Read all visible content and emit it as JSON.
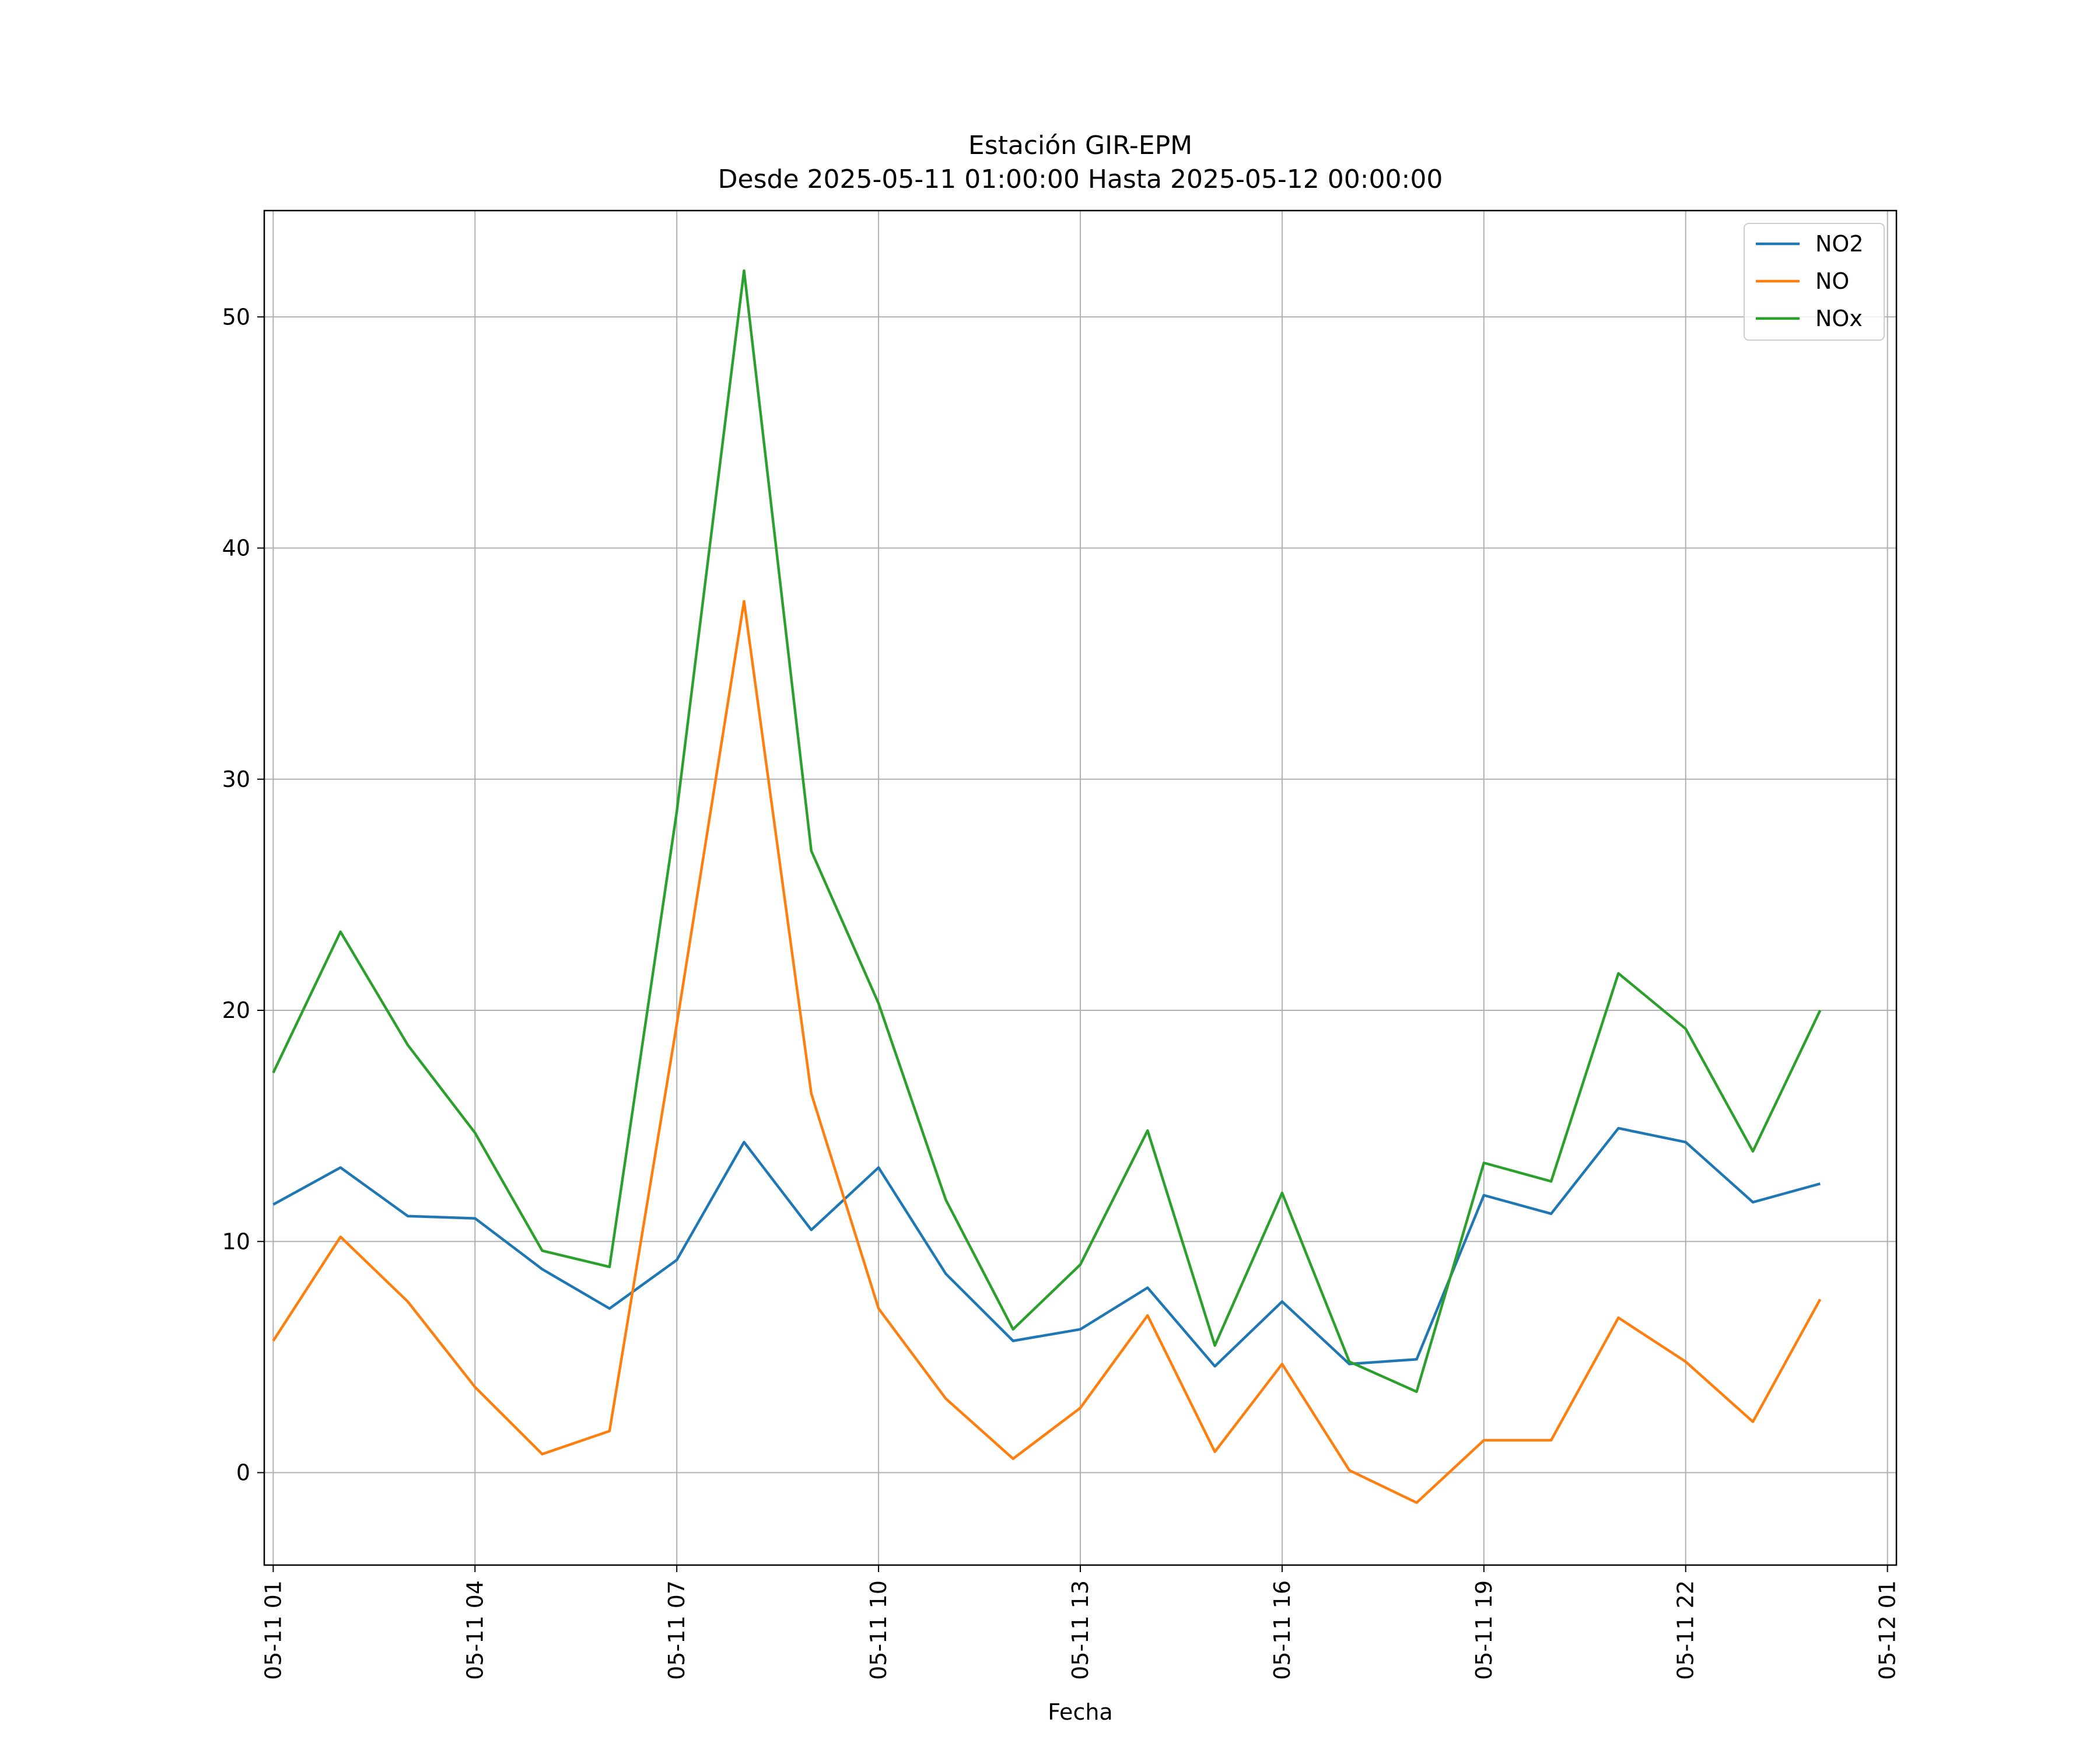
{
  "chart_data": {
    "type": "line",
    "title": "Estación GIR-EPM",
    "subtitle": "Desde 2025-05-11 01:00:00 Hasta 2025-05-12 00:00:00",
    "xlabel": "Fecha",
    "ylabel": "",
    "x": [
      "2025-05-11 01:00",
      "2025-05-11 02:00",
      "2025-05-11 03:00",
      "2025-05-11 04:00",
      "2025-05-11 05:00",
      "2025-05-11 06:00",
      "2025-05-11 07:00",
      "2025-05-11 08:00",
      "2025-05-11 09:00",
      "2025-05-11 10:00",
      "2025-05-11 11:00",
      "2025-05-11 12:00",
      "2025-05-11 13:00",
      "2025-05-11 14:00",
      "2025-05-11 15:00",
      "2025-05-11 16:00",
      "2025-05-11 17:00",
      "2025-05-11 18:00",
      "2025-05-11 19:00",
      "2025-05-11 20:00",
      "2025-05-11 21:00",
      "2025-05-11 22:00",
      "2025-05-11 23:00",
      "2025-05-12 00:00"
    ],
    "x_ticks": [
      "05-11 01",
      "05-11 04",
      "05-11 07",
      "05-11 10",
      "05-11 13",
      "05-11 16",
      "05-11 19",
      "05-11 22",
      "05-12 01"
    ],
    "y_ticks": [
      0,
      10,
      20,
      30,
      40,
      50
    ],
    "ylim": [
      -4,
      54.6
    ],
    "xlim": [
      "2025-05-11 00:52",
      "2025-05-12 01:08"
    ],
    "grid": true,
    "legend": {
      "position": "top-right"
    },
    "series": [
      {
        "name": "NO2",
        "color": "#1f77b4",
        "values": [
          11.6,
          13.2,
          11.1,
          11.0,
          8.8,
          7.1,
          9.2,
          14.3,
          10.5,
          13.2,
          8.6,
          5.7,
          6.2,
          8.0,
          4.6,
          7.4,
          4.7,
          4.9,
          12.0,
          11.2,
          14.9,
          14.3,
          11.7,
          12.5
        ]
      },
      {
        "name": "NO",
        "color": "#ff7f0e",
        "values": [
          5.7,
          10.2,
          7.4,
          3.7,
          0.8,
          1.8,
          19.4,
          37.7,
          16.4,
          7.1,
          3.2,
          0.6,
          2.8,
          6.8,
          0.9,
          4.7,
          0.1,
          -1.3,
          1.4,
          1.4,
          6.7,
          4.8,
          2.2,
          7.5
        ]
      },
      {
        "name": "NOx",
        "color": "#2ca02c",
        "values": [
          17.3,
          23.4,
          18.5,
          14.7,
          9.6,
          8.9,
          28.6,
          52.0,
          26.9,
          20.3,
          11.8,
          6.2,
          9.0,
          14.8,
          5.5,
          12.1,
          4.8,
          3.5,
          13.4,
          12.6,
          21.6,
          19.2,
          13.9,
          20.0
        ]
      }
    ]
  }
}
